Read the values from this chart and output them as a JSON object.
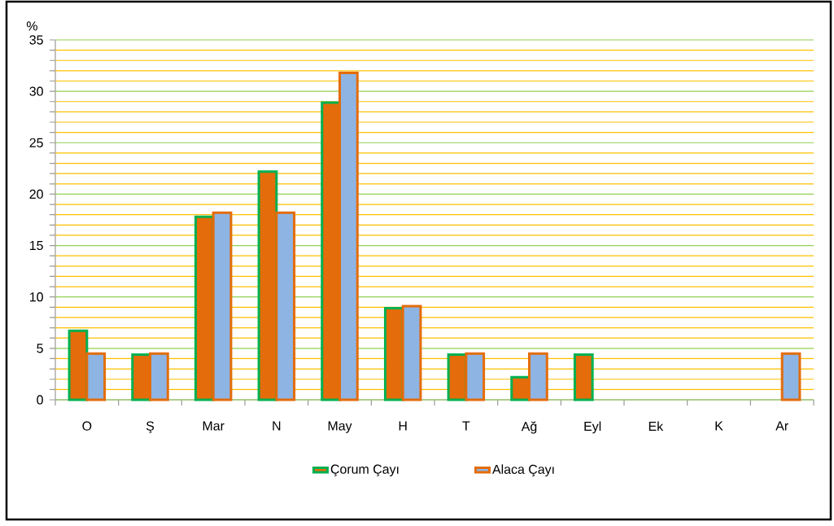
{
  "chart_data": {
    "type": "bar",
    "ylabel": "%",
    "categories": [
      "O",
      "Ş",
      "Mar",
      "N",
      "May",
      "H",
      "T",
      "Ağ",
      "Eyl",
      "Ek",
      "K",
      "Ar"
    ],
    "series": [
      {
        "name": "Çorum Çayı",
        "color": "#e46c0a",
        "values": [
          6.7,
          4.4,
          17.8,
          22.2,
          28.9,
          8.9,
          4.4,
          2.2,
          4.4,
          null,
          null,
          null
        ]
      },
      {
        "name": "Alaca Çayı",
        "color": "#8eb4e3",
        "values": [
          4.5,
          4.5,
          18.2,
          18.2,
          31.8,
          9.1,
          4.5,
          4.5,
          null,
          null,
          null,
          4.5
        ]
      }
    ],
    "ylim": [
      0,
      35
    ],
    "yticks": [
      0,
      {
        "value": 1,
        "label": null
      },
      {
        "value": 2,
        "label": null
      },
      {
        "value": 3,
        "label": null
      },
      {
        "value": 4,
        "label": null
      },
      5,
      {
        "value": 6,
        "label": null
      },
      {
        "value": 7,
        "label": null
      },
      {
        "value": 8,
        "label": null
      },
      {
        "value": 9,
        "label": null
      },
      10,
      {
        "value": 11,
        "label": null
      },
      {
        "value": 12,
        "label": null
      },
      {
        "value": 13,
        "label": null
      },
      {
        "value": 14,
        "label": null
      },
      15,
      {
        "value": 16,
        "label": null
      },
      {
        "value": 17,
        "label": null
      },
      {
        "value": 18,
        "label": null
      },
      {
        "value": 19,
        "label": null
      },
      20,
      {
        "value": 21,
        "label": null
      },
      {
        "value": 22,
        "label": null
      },
      {
        "value": 23,
        "label": null
      },
      {
        "value": 24,
        "label": null
      },
      25,
      {
        "value": 26,
        "label": null
      },
      {
        "value": 27,
        "label": null
      },
      {
        "value": 28,
        "label": null
      },
      {
        "value": 29,
        "label": null
      },
      30,
      {
        "value": 31,
        "label": null
      },
      {
        "value": 32,
        "label": null
      },
      {
        "value": 33,
        "label": null
      },
      {
        "value": 34,
        "label": null
      },
      35
    ],
    "grid": "y",
    "legend": "bottom"
  }
}
